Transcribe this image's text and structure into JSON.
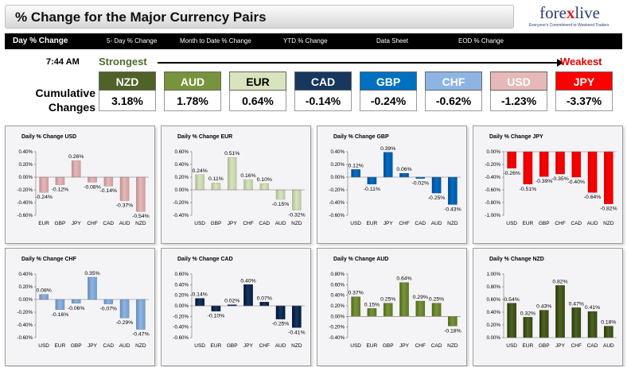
{
  "header": {
    "title": "% Change for the Major Currency Pairs"
  },
  "logo": {
    "brand_left": "fore",
    "brand_x": "x",
    "brand_right": "live",
    "tagline": "Everyone's Commitment to Weekend Traders"
  },
  "nav": {
    "items": [
      {
        "label": "Day % Change",
        "active": true
      },
      {
        "label": "5- Day % Change"
      },
      {
        "label": "Month to Date % Change"
      },
      {
        "label": "YTD % Change"
      },
      {
        "label": "Data Sheet"
      },
      {
        "label": "EOD % Change"
      }
    ]
  },
  "ranking": {
    "time": "7:44 AM",
    "strongest_label": "Strongest",
    "weakest_label": "Weakest",
    "cumulative_label": "Cumulative Changes",
    "currencies": [
      {
        "name": "NZD",
        "value": "3.18%",
        "color": "#4f6228"
      },
      {
        "name": "AUD",
        "value": "1.78%",
        "color": "#77933c"
      },
      {
        "name": "EUR",
        "value": "0.64%",
        "color": "#d7e4bd"
      },
      {
        "name": "CAD",
        "value": "-0.14%",
        "color": "#17375e"
      },
      {
        "name": "GBP",
        "value": "-0.24%",
        "color": "#0070c0"
      },
      {
        "name": "CHF",
        "value": "-0.62%",
        "color": "#8eb4e3"
      },
      {
        "name": "USD",
        "value": "-1.23%",
        "color": "#e6b9b8"
      },
      {
        "name": "JPY",
        "value": "-3.37%",
        "color": "#ff0000"
      }
    ]
  },
  "chart_data": [
    {
      "type": "bar",
      "title": "Daily % Change USD",
      "categories": [
        "EUR",
        "GBP",
        "JPY",
        "CHF",
        "CAD",
        "AUD",
        "NZD"
      ],
      "values": [
        -0.24,
        -0.12,
        0.26,
        -0.08,
        -0.14,
        -0.37,
        -0.54
      ],
      "labels": [
        "-0.24%",
        "-0.12%",
        "0.26%",
        "-0.08%",
        "-0.14%",
        "-0.37%",
        "-0.54%"
      ],
      "ylim": [
        -0.6,
        0.4
      ],
      "ticks": [
        "0.40%",
        "0.20%",
        "0.00%",
        "-0.20%",
        "-0.40%",
        "-0.60%"
      ],
      "color": "#e6b9b8"
    },
    {
      "type": "bar",
      "title": "Daily % Change EUR",
      "categories": [
        "USD",
        "GBP",
        "JPY",
        "CHF",
        "CAD",
        "AUD",
        "NZD"
      ],
      "values": [
        0.24,
        0.11,
        0.51,
        0.16,
        0.1,
        -0.15,
        -0.32
      ],
      "labels": [
        "0.24%",
        "0.11%",
        "0.51%",
        "0.16%",
        "0.10%",
        "-0.15%",
        "-0.32%"
      ],
      "ylim": [
        -0.4,
        0.6
      ],
      "ticks": [
        "0.60%",
        "0.40%",
        "0.20%",
        "0.00%",
        "-0.20%",
        "-0.40%"
      ],
      "color": "#d7e4bd"
    },
    {
      "type": "bar",
      "title": "Daily % Change GBP",
      "categories": [
        "USD",
        "EUR",
        "JPY",
        "CHF",
        "CAD",
        "AUD",
        "NZD"
      ],
      "values": [
        0.12,
        -0.11,
        0.39,
        0.06,
        -0.02,
        -0.25,
        -0.43
      ],
      "labels": [
        "0.12%",
        "-0.11%",
        "0.39%",
        "0.06%",
        "-0.02%",
        "-0.25%",
        "-0.43%"
      ],
      "ylim": [
        -0.6,
        0.4
      ],
      "ticks": [
        "0.40%",
        "0.20%",
        "0.00%",
        "-0.20%",
        "-0.40%",
        "-0.60%"
      ],
      "color": "#0070c0"
    },
    {
      "type": "bar",
      "title": "Daily % Change JPY",
      "categories": [
        "USD",
        "EUR",
        "GBP",
        "CHF",
        "CAD",
        "AUD",
        "NZD"
      ],
      "values": [
        -0.26,
        -0.51,
        -0.39,
        -0.35,
        -0.4,
        -0.64,
        -0.82
      ],
      "labels": [
        "-0.26%",
        "-0.51%",
        "-0.39%",
        "-0.35%",
        "-0.40%",
        "-0.64%",
        "-0.82%"
      ],
      "ylim": [
        -1.0,
        0.0
      ],
      "ticks": [
        "0.00%",
        "-0.20%",
        "-0.40%",
        "-0.60%",
        "-0.80%",
        "-1.00%"
      ],
      "color": "#ff0000"
    },
    {
      "type": "bar",
      "title": "Daily % Change CHF",
      "categories": [
        "USD",
        "EUR",
        "GBP",
        "JPY",
        "CAD",
        "AUD",
        "NZD"
      ],
      "values": [
        0.08,
        -0.16,
        -0.06,
        0.35,
        -0.07,
        -0.29,
        -0.47
      ],
      "labels": [
        "0.08%",
        "-0.16%",
        "-0.06%",
        "0.35%",
        "-0.07%",
        "-0.29%",
        "-0.47%"
      ],
      "ylim": [
        -0.6,
        0.4
      ],
      "ticks": [
        "0.40%",
        "0.20%",
        "0.00%",
        "-0.20%",
        "-0.40%",
        "-0.60%"
      ],
      "color": "#8eb4e3"
    },
    {
      "type": "bar",
      "title": "Daily % Change CAD",
      "categories": [
        "USD",
        "EUR",
        "GBP",
        "JPY",
        "CHF",
        "AUD",
        "NZD"
      ],
      "values": [
        0.14,
        -0.1,
        0.02,
        0.4,
        0.07,
        -0.25,
        -0.41
      ],
      "labels": [
        "0.14%",
        "-0.10%",
        "0.02%",
        "0.40%",
        "0.07%",
        "-0.25%",
        "-0.41%"
      ],
      "ylim": [
        -0.6,
        0.6
      ],
      "ticks": [
        "0.60%",
        "0.40%",
        "0.20%",
        "0.00%",
        "-0.20%",
        "-0.40%",
        "-0.60%"
      ],
      "color": "#17375e"
    },
    {
      "type": "bar",
      "title": "Daily % Change AUD",
      "categories": [
        "USD",
        "EUR",
        "GBP",
        "JPY",
        "CHF",
        "CAD",
        "NZD"
      ],
      "values": [
        0.37,
        0.15,
        0.25,
        0.64,
        0.29,
        0.25,
        -0.18
      ],
      "labels": [
        "0.37%",
        "0.15%",
        "0.25%",
        "0.64%",
        "0.29%",
        "0.25%",
        "-0.18%"
      ],
      "ylim": [
        -0.4,
        0.8
      ],
      "ticks": [
        "0.80%",
        "0.60%",
        "0.40%",
        "0.20%",
        "0.00%",
        "-0.20%",
        "-0.40%"
      ],
      "color": "#77933c"
    },
    {
      "type": "bar",
      "title": "Daily % Change NZD",
      "categories": [
        "USD",
        "EUR",
        "GBP",
        "JPY",
        "CHF",
        "CAD",
        "AUD"
      ],
      "values": [
        0.54,
        0.32,
        0.43,
        0.82,
        0.47,
        0.41,
        0.18
      ],
      "labels": [
        "0.54%",
        "0.32%",
        "0.43%",
        "0.82%",
        "0.47%",
        "0.41%",
        "0.18%"
      ],
      "ylim": [
        0.0,
        1.0
      ],
      "ticks": [
        "1.00%",
        "0.80%",
        "0.60%",
        "0.40%",
        "0.20%",
        "0.00%"
      ],
      "color": "#4f6228"
    }
  ]
}
